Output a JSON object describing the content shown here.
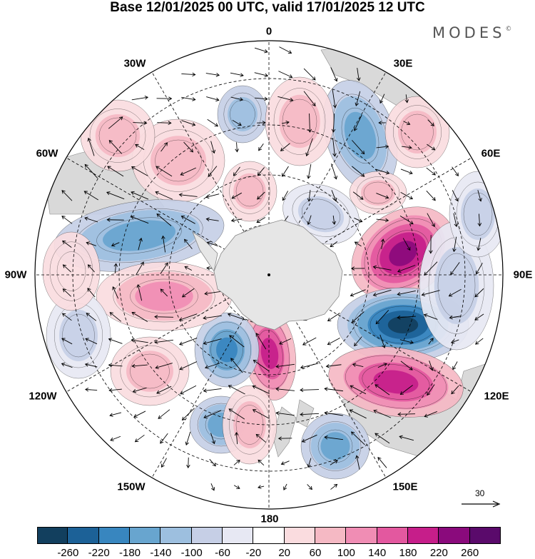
{
  "title": "Base 12/01/2025 00 UTC, valid 17/01/2025 12 UTC",
  "brand": {
    "name": "MODES",
    "mark": "©"
  },
  "longitude_labels": [
    {
      "id": "lon-0",
      "text": "0"
    },
    {
      "id": "lon-30e",
      "text": "30E"
    },
    {
      "id": "lon-60e",
      "text": "60E"
    },
    {
      "id": "lon-90e",
      "text": "90E"
    },
    {
      "id": "lon-120e",
      "text": "120E"
    },
    {
      "id": "lon-150e",
      "text": "150E"
    },
    {
      "id": "lon-180",
      "text": "180"
    },
    {
      "id": "lon-150w",
      "text": "150W"
    },
    {
      "id": "lon-120w",
      "text": "120W"
    },
    {
      "id": "lon-90w",
      "text": "90W"
    },
    {
      "id": "lon-60w",
      "text": "60W"
    },
    {
      "id": "lon-30w",
      "text": "30W"
    }
  ],
  "reference_vector": {
    "value": "30"
  },
  "colorbar": {
    "colors": [
      "#123f5e",
      "#1c6197",
      "#3886bf",
      "#68a5cf",
      "#9dbfdf",
      "#c6cfe6",
      "#e7e8f3",
      "#ffffff",
      "#fadcdf",
      "#f5b9c4",
      "#f08db4",
      "#e3589f",
      "#c61e8a",
      "#8a0a7c",
      "#5a0a6b"
    ],
    "labels": [
      "-260",
      "-220",
      "-180",
      "-140",
      "-100",
      "-60",
      "-20",
      "20",
      "60",
      "100",
      "140",
      "180",
      "220",
      "260"
    ]
  },
  "colors": {
    "antarctica": "#e6e6e6",
    "land": "#d9d9d9",
    "coast": "#888888"
  }
}
